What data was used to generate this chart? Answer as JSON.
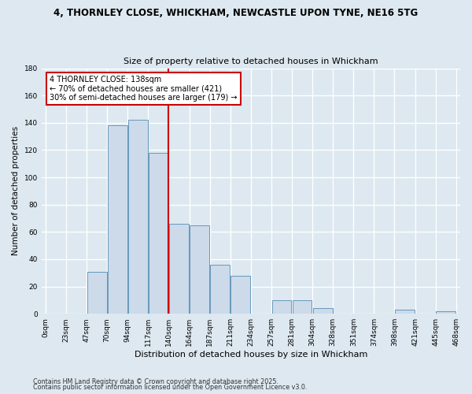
{
  "title_line1": "4, THORNLEY CLOSE, WHICKHAM, NEWCASTLE UPON TYNE, NE16 5TG",
  "title_line2": "Size of property relative to detached houses in Whickham",
  "xlabel": "Distribution of detached houses by size in Whickham",
  "ylabel": "Number of detached properties",
  "bar_values": [
    0,
    0,
    31,
    138,
    142,
    118,
    66,
    65,
    36,
    28,
    0,
    10,
    10,
    4,
    0,
    0,
    0,
    3,
    0,
    2
  ],
  "bin_labels": [
    "0sqm",
    "23sqm",
    "47sqm",
    "70sqm",
    "94sqm",
    "117sqm",
    "140sqm",
    "164sqm",
    "187sqm",
    "211sqm",
    "234sqm",
    "257sqm",
    "281sqm",
    "304sqm",
    "328sqm",
    "351sqm",
    "374sqm",
    "398sqm",
    "421sqm",
    "445sqm",
    "468sqm"
  ],
  "bar_color": "#ccdaea",
  "bar_edge_color": "#6699bb",
  "annotation_line1": "4 THORNLEY CLOSE: 138sqm",
  "annotation_line2": "← 70% of detached houses are smaller (421)",
  "annotation_line3": "30% of semi-detached houses are larger (179) →",
  "annotation_box_color": "#ffffff",
  "annotation_box_edge": "#cc0000",
  "vline_bin": 6,
  "ylim": [
    0,
    180
  ],
  "yticks": [
    0,
    20,
    40,
    60,
    80,
    100,
    120,
    140,
    160,
    180
  ],
  "background_color": "#dde8f0",
  "grid_color": "#ffffff",
  "footnote1": "Contains HM Land Registry data © Crown copyright and database right 2025.",
  "footnote2": "Contains public sector information licensed under the Open Government Licence v3.0."
}
